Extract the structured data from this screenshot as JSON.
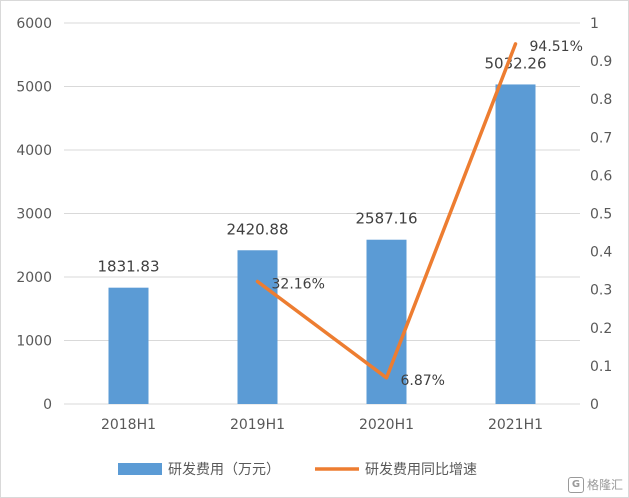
{
  "chart_data": {
    "type": "bar",
    "categories": [
      "2018H1",
      "2019H1",
      "2020H1",
      "2021H1"
    ],
    "series": [
      {
        "name": "研发费用（万元）",
        "kind": "bar",
        "axis": "left",
        "color": "#5b9bd5",
        "values": [
          1831.83,
          2420.88,
          2587.16,
          5032.26
        ],
        "labels": [
          "1831.83",
          "2420.88",
          "2587.16",
          "5032.26"
        ]
      },
      {
        "name": "研发费用同比增速",
        "kind": "line",
        "axis": "right",
        "color": "#ed7d31",
        "values": [
          null,
          0.3216,
          0.0687,
          0.9451
        ],
        "labels": [
          "",
          "32.16%",
          "6.87%",
          "94.51%"
        ]
      }
    ],
    "y_left": {
      "min": 0,
      "max": 6000,
      "ticks": [
        0,
        1000,
        2000,
        3000,
        4000,
        5000,
        6000
      ]
    },
    "y_right": {
      "min": 0,
      "max": 1,
      "ticks": [
        "0",
        "0.1",
        "0.2",
        "0.3",
        "0.4",
        "0.5",
        "0.6",
        "0.7",
        "0.8",
        "0.9",
        "1"
      ]
    },
    "grid": true,
    "legend_position": "bottom"
  },
  "watermark": {
    "logo_text": "G",
    "text": "格隆汇"
  }
}
